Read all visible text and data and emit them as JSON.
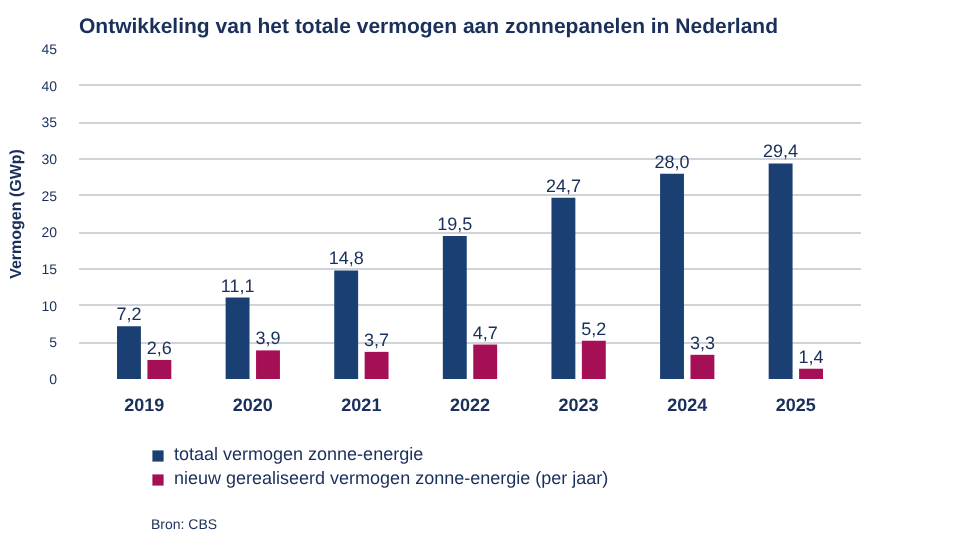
{
  "chart_data": {
    "type": "bar",
    "title": "Ontwikkeling van het totale vermogen aan zonnepanelen in Nederland",
    "ylabel": "Vermogen (GWp)",
    "categories": [
      "2019",
      "2020",
      "2021",
      "2022",
      "2023",
      "2024",
      "2025"
    ],
    "series": [
      {
        "name": "totaal vermogen zonne-energie",
        "color": "#1a3f73",
        "values": [
          7.2,
          11.1,
          14.8,
          19.5,
          24.7,
          28.0,
          29.4
        ],
        "value_labels": [
          "7,2",
          "11,1",
          "14,8",
          "19,5",
          "24,7",
          "28,0",
          "29,4"
        ]
      },
      {
        "name": "nieuw gerealiseerd vermogen zonne-energie (per jaar)",
        "color": "#a50f56",
        "values": [
          2.6,
          3.9,
          3.7,
          4.7,
          5.2,
          3.3,
          1.4
        ],
        "value_labels": [
          "2,6",
          "3,9",
          "3,7",
          "4,7",
          "5,2",
          "3,3",
          "1,4"
        ]
      }
    ],
    "ylim": [
      0,
      45
    ],
    "yticks": [
      0,
      5,
      10,
      15,
      20,
      25,
      30,
      35,
      40,
      45
    ],
    "grid": "y",
    "legend": "bottom",
    "annotations": [
      "Bron: CBS"
    ]
  }
}
